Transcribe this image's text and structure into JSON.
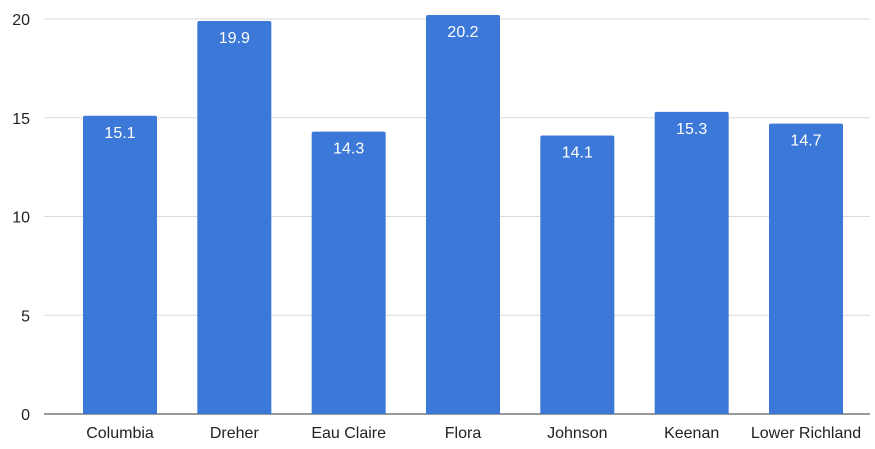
{
  "chart_data": {
    "type": "bar",
    "title": "",
    "xlabel": "",
    "ylabel": "",
    "categories": [
      "Columbia",
      "Dreher",
      "Eau Claire",
      "Flora",
      "Johnson",
      "Keenan",
      "Lower Richland"
    ],
    "values": [
      15.1,
      19.9,
      14.3,
      20.2,
      14.1,
      15.3,
      14.7
    ],
    "ylim": [
      0,
      20
    ],
    "yticks": [
      0,
      5,
      10,
      15,
      20
    ],
    "grid": true,
    "legend": "none",
    "data_labels": true,
    "bar_color": "#3c78d8"
  }
}
